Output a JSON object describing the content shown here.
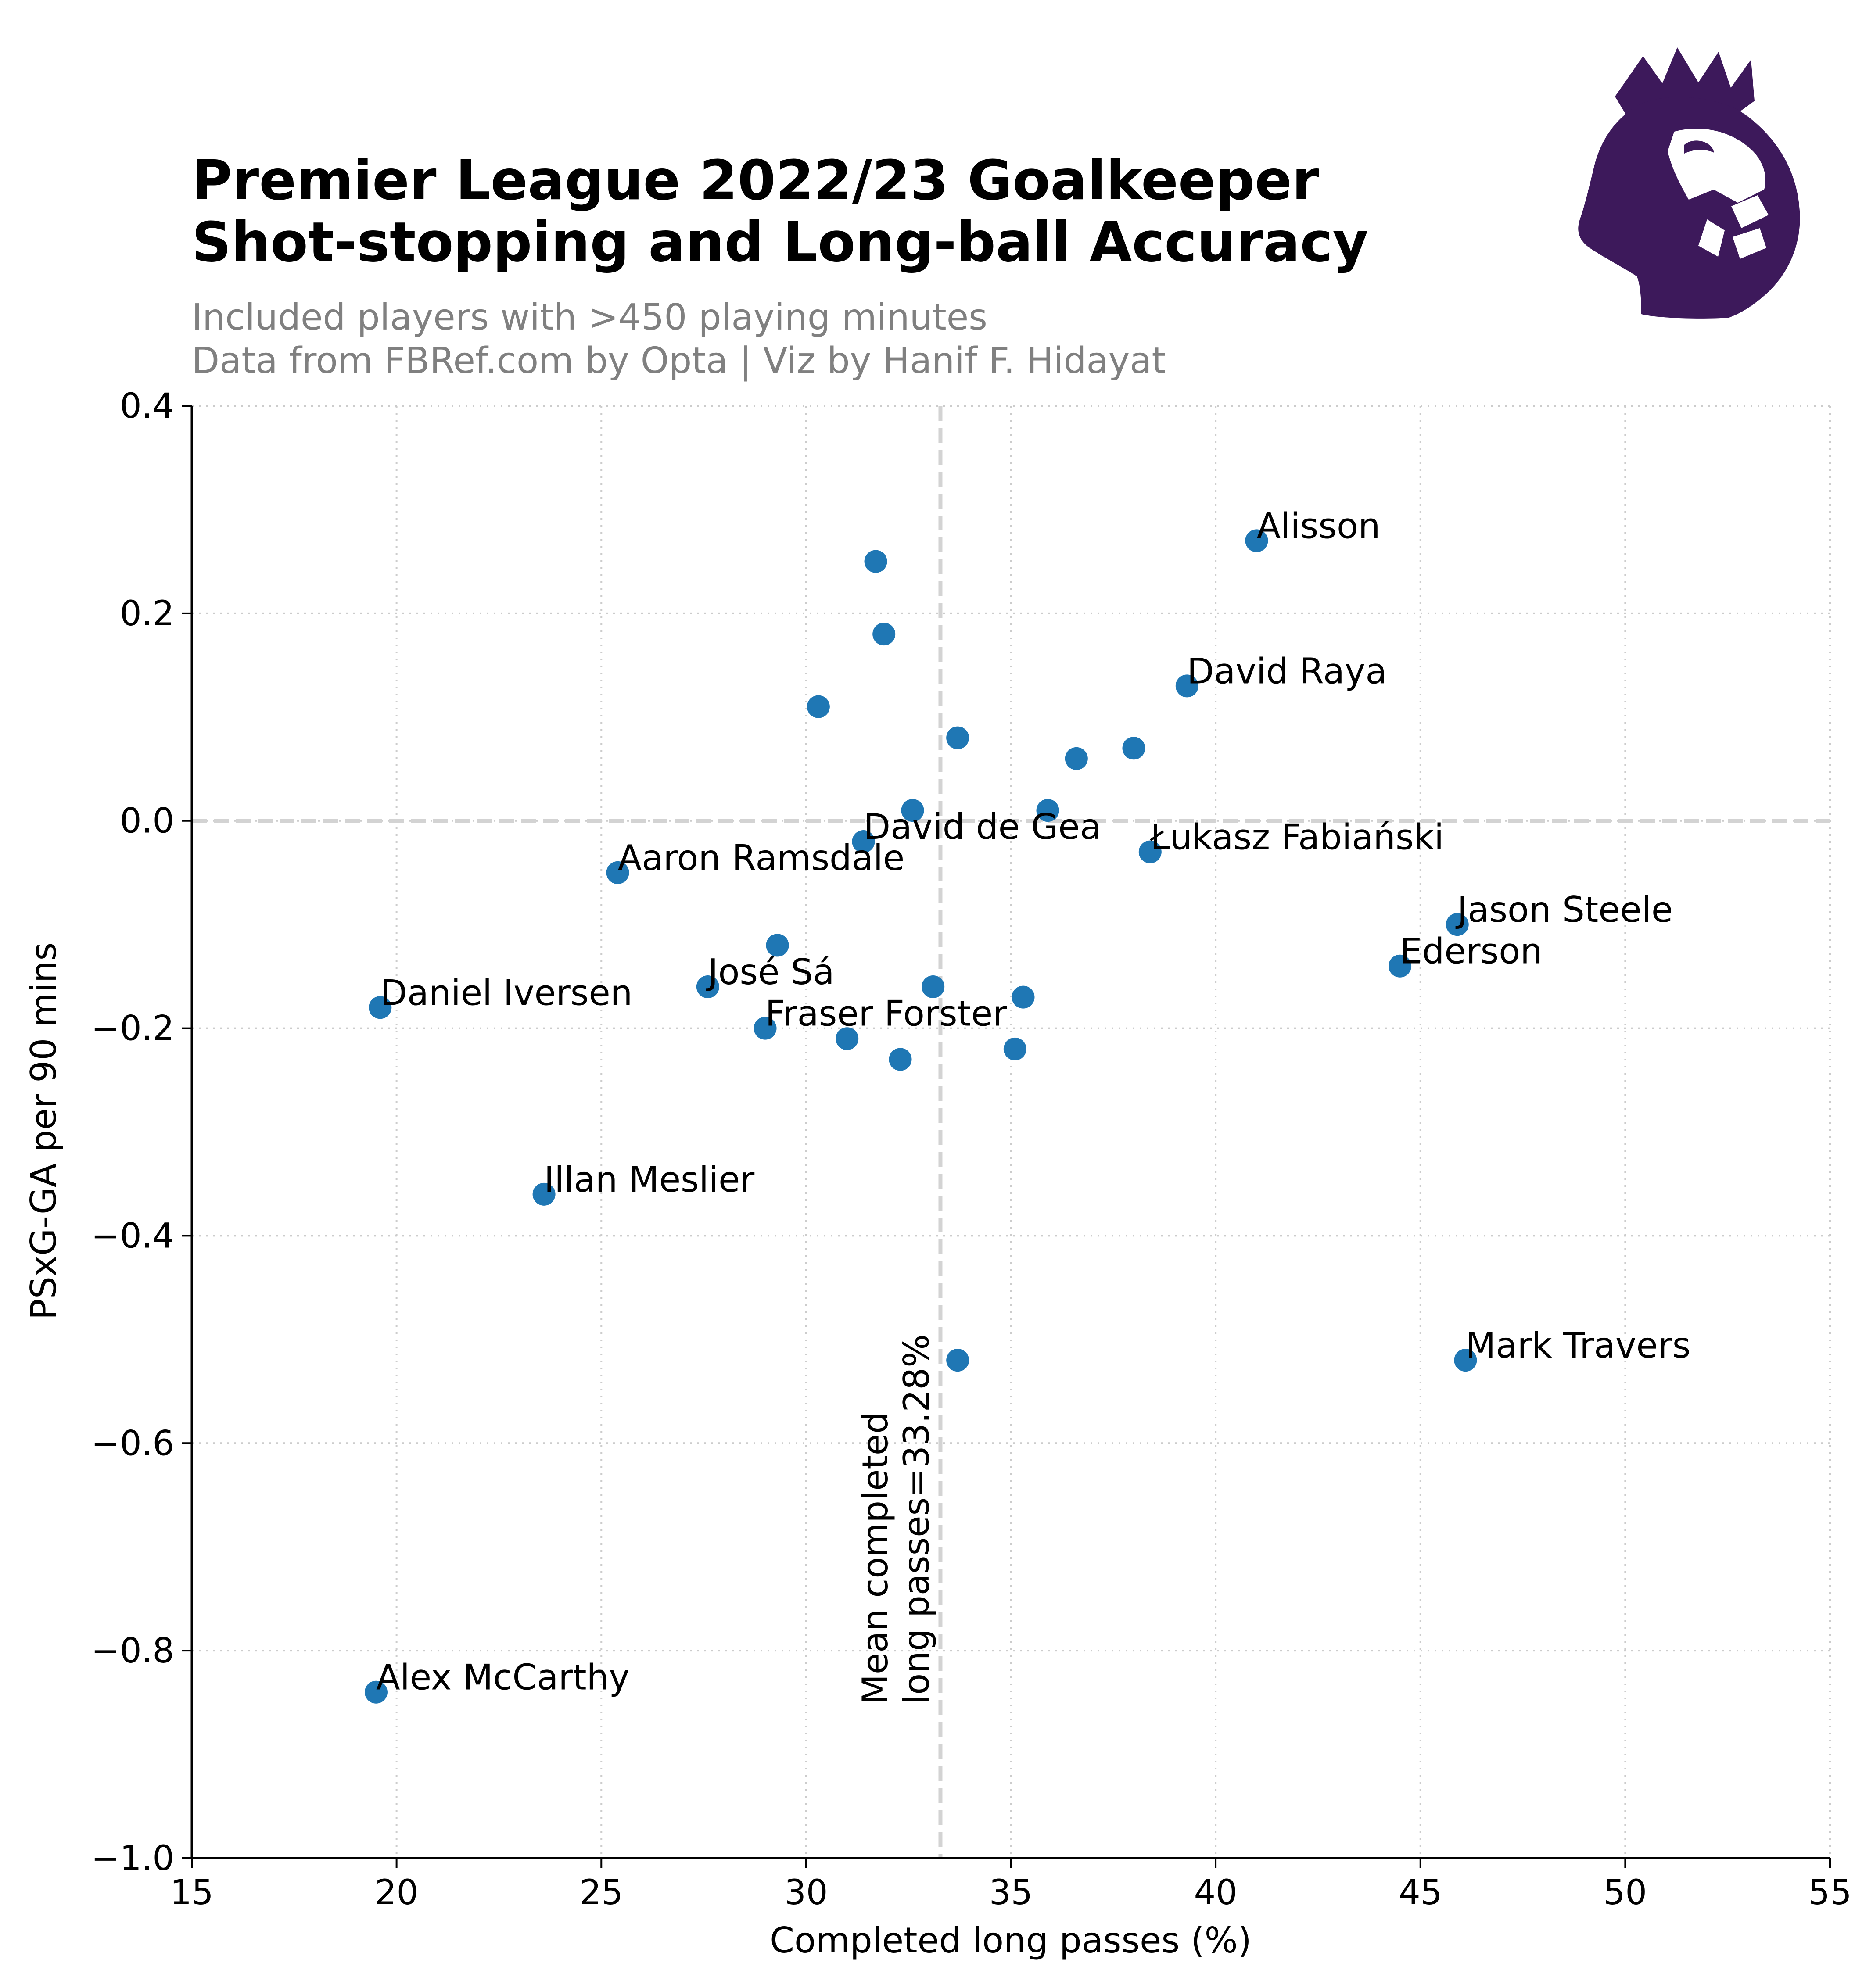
{
  "header": {
    "title_line1": "Premier League 2022/23 Goalkeeper",
    "title_line2": "Shot-stopping and Long-ball Accuracy",
    "subtitle_line1": "Included players with >450 playing minutes",
    "subtitle_line2": "Data from FBRef.com by Opta | Viz by Hanif F. Hidayat"
  },
  "logo": {
    "name": "premier-league-lion-logo",
    "color": "#3d195b"
  },
  "chart_data": {
    "type": "scatter",
    "xlabel": "Completed long passes (%)",
    "ylabel": "PSxG-GA per 90 mins",
    "xlim": [
      15,
      55
    ],
    "ylim": [
      -1.0,
      0.4
    ],
    "xticks": [
      15,
      20,
      25,
      30,
      35,
      40,
      45,
      50,
      55
    ],
    "yticks": [
      0.4,
      0.2,
      0.0,
      -0.2,
      -0.4,
      -0.6,
      -0.8,
      -1.0
    ],
    "ytick_labels": [
      "0.4",
      "0.2",
      "0.0",
      "−0.2",
      "−0.4",
      "−0.6",
      "−0.8",
      "−1.0"
    ],
    "grid": true,
    "point_color": "#1f77b4",
    "reference_line_color": "#d3d3d3",
    "mean_line": {
      "axis": "x",
      "value": 33.28,
      "label_line1": "Mean completed",
      "label_line2": "long passes=33.28%"
    },
    "zero_line": {
      "axis": "y",
      "value": 0.0
    },
    "points": [
      {
        "x": 41.0,
        "y": 0.27,
        "label": "Alisson"
      },
      {
        "x": 31.7,
        "y": 0.25,
        "label": ""
      },
      {
        "x": 31.9,
        "y": 0.18,
        "label": ""
      },
      {
        "x": 39.3,
        "y": 0.13,
        "label": "David Raya"
      },
      {
        "x": 30.3,
        "y": 0.11,
        "label": ""
      },
      {
        "x": 33.7,
        "y": 0.08,
        "label": ""
      },
      {
        "x": 38.0,
        "y": 0.07,
        "label": ""
      },
      {
        "x": 36.6,
        "y": 0.06,
        "label": ""
      },
      {
        "x": 32.6,
        "y": 0.01,
        "label": ""
      },
      {
        "x": 35.9,
        "y": 0.01,
        "label": ""
      },
      {
        "x": 31.4,
        "y": -0.02,
        "label": "David de Gea"
      },
      {
        "x": 38.4,
        "y": -0.03,
        "label": "Łukasz Fabiański"
      },
      {
        "x": 25.4,
        "y": -0.05,
        "label": "Aaron Ramsdale"
      },
      {
        "x": 45.9,
        "y": -0.1,
        "label": "Jason Steele"
      },
      {
        "x": 29.3,
        "y": -0.12,
        "label": ""
      },
      {
        "x": 44.5,
        "y": -0.14,
        "label": "Ederson"
      },
      {
        "x": 27.6,
        "y": -0.16,
        "label": "José Sá"
      },
      {
        "x": 33.1,
        "y": -0.16,
        "label": ""
      },
      {
        "x": 35.3,
        "y": -0.17,
        "label": ""
      },
      {
        "x": 19.6,
        "y": -0.18,
        "label": "Daniel Iversen"
      },
      {
        "x": 29.0,
        "y": -0.2,
        "label": "Fraser Forster"
      },
      {
        "x": 31.0,
        "y": -0.21,
        "label": ""
      },
      {
        "x": 35.1,
        "y": -0.22,
        "label": ""
      },
      {
        "x": 32.3,
        "y": -0.23,
        "label": ""
      },
      {
        "x": 23.6,
        "y": -0.36,
        "label": "Illan Meslier"
      },
      {
        "x": 33.7,
        "y": -0.52,
        "label": ""
      },
      {
        "x": 46.1,
        "y": -0.52,
        "label": "Mark Travers"
      },
      {
        "x": 19.5,
        "y": -0.84,
        "label": "Alex McCarthy"
      }
    ]
  }
}
